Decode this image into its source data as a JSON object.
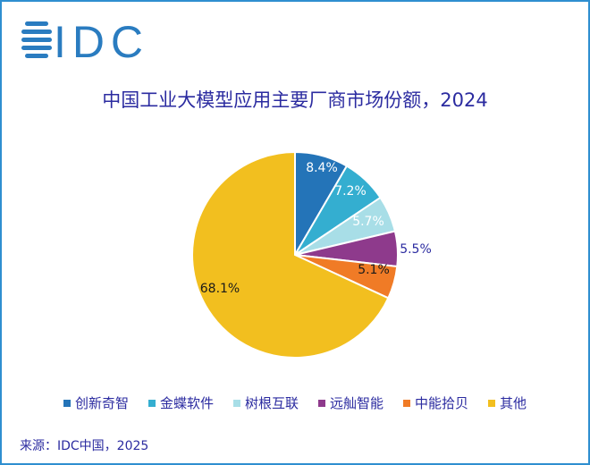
{
  "logo_text": "IDC",
  "footer": {
    "source": "来源：IDC中国，2025"
  },
  "chart_data": {
    "type": "pie",
    "title": "中国工业大模型应用主要厂商市场份额，2024",
    "legend_position": "bottom",
    "slices": [
      {
        "name": "创新奇智",
        "value": 8.4,
        "label": "8.4%",
        "color": "#2474b8"
      },
      {
        "name": "金蝶软件",
        "value": 7.2,
        "label": "7.2%",
        "color": "#34aed0"
      },
      {
        "name": "树根互联",
        "value": 5.7,
        "label": "5.7%",
        "color": "#a8dee7"
      },
      {
        "name": "远舢智能",
        "value": 5.5,
        "label": "5.5%",
        "color": "#8e3a8c"
      },
      {
        "name": "中能拾贝",
        "value": 5.1,
        "label": "5.1%",
        "color": "#f07b26"
      },
      {
        "name": "其他",
        "value": 68.1,
        "label": "68.1%",
        "color": "#f2bf1f"
      }
    ]
  }
}
